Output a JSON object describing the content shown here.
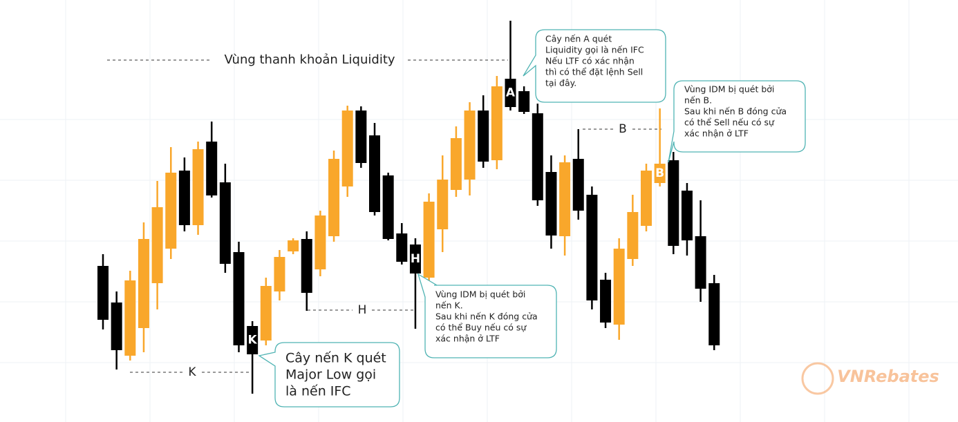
{
  "chart_data": {
    "type": "candlestick",
    "open": [
      226,
      173,
      96,
      136,
      201,
      251,
      364,
      285,
      406,
      347,
      246,
      139,
      118,
      189,
      247,
      265,
      221,
      269,
      341,
      451,
      415,
      357,
      273,
      257,
      209,
      279,
      336,
      351,
      451,
      379,
      497,
      479,
      447,
      362,
      269,
      381,
      329,
      206,
      141,
      236,
      284,
      346,
      379,
      335,
      269,
      201
    ],
    "high": [
      243,
      189,
      219,
      289,
      349,
      398,
      383,
      406,
      435,
      374,
      261,
      146,
      209,
      249,
      266,
      276,
      306,
      393,
      458,
      457,
      433,
      361,
      288,
      266,
      331,
      386,
      428,
      463,
      473,
      501,
      581,
      486,
      461,
      386,
      386,
      424,
      341,
      216,
      266,
      329,
      374,
      454,
      391,
      346,
      321,
      213
    ],
    "low": [
      134,
      76,
      89,
      101,
      163,
      236,
      276,
      271,
      325,
      216,
      101,
      41,
      111,
      176,
      243,
      161,
      211,
      261,
      326,
      368,
      299,
      263,
      228,
      135,
      199,
      246,
      326,
      328,
      368,
      366,
      451,
      446,
      313,
      251,
      241,
      293,
      163,
      136,
      119,
      226,
      276,
      341,
      243,
      241,
      174,
      104
    ],
    "close": [
      148,
      104,
      205,
      265,
      311,
      361,
      285,
      395,
      328,
      229,
      111,
      98,
      197,
      239,
      263,
      187,
      299,
      381,
      451,
      375,
      304,
      265,
      232,
      215,
      319,
      351,
      411,
      451,
      377,
      486,
      456,
      449,
      321,
      270,
      376,
      306,
      176,
      144,
      251,
      304,
      364,
      374,
      255,
      263,
      193,
      111
    ],
    "candle_labels": [
      null,
      null,
      null,
      null,
      null,
      null,
      null,
      null,
      null,
      null,
      null,
      "K",
      null,
      null,
      null,
      null,
      null,
      null,
      null,
      null,
      null,
      null,
      null,
      "H",
      null,
      null,
      null,
      null,
      null,
      null,
      "A",
      null,
      null,
      null,
      null,
      null,
      null,
      null,
      null,
      null,
      null,
      "B",
      null,
      null,
      null,
      null
    ],
    "up_color": "#f9a72b",
    "down_color": "#000000",
    "ylim": [
      0,
      611
    ],
    "levels": [
      "Vùng thanh khoản Liquidity",
      "K",
      "H",
      "B"
    ],
    "callouts": [
      {
        "lines": [
          "Cây nến A quét",
          "Liquidity gọi là nến IFC",
          "Nếu LTF có xác nhận",
          "thì có thể đặt lệnh Sell",
          "tại đây."
        ]
      },
      {
        "lines": [
          "Vùng IDM bị quét bởi",
          "nến B.",
          "Sau khi nến B đóng cửa",
          "có thể Sell nếu có sự",
          "xác nhận ở LTF"
        ]
      },
      {
        "lines": [
          "Vùng IDM bị quét bởi",
          "nến K.",
          "Sau khi nến K đóng cửa",
          "có thể Buy nếu có sự",
          "xác nhận ở LTF"
        ]
      },
      {
        "lines": [
          "Cây nến K quét",
          "Major Low gọi",
          "là nến IFC"
        ]
      }
    ],
    "logo": "VNRebates"
  }
}
